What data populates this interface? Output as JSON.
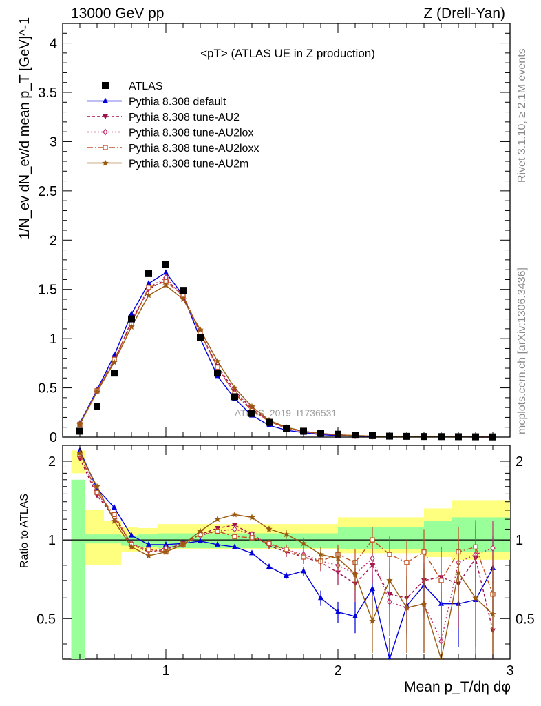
{
  "header": {
    "left": "13000 GeV pp",
    "right": "Z (Drell-Yan)"
  },
  "side_text": {
    "rivet": "Rivet 3.1.10, ≥ 2.1M events",
    "mcplots": "mcplots.cern.ch [arXiv:1306.3436]"
  },
  "watermark": "ATLAS_2019_I1736531",
  "chart_data": [
    {
      "type": "line",
      "title": "<pT> (ATLAS UE in Z production)",
      "ylabel": "1/N_ev dN_ev/d mean p_T [GeV]^-1",
      "xlim": [
        0.4,
        3.0
      ],
      "ylim": [
        0,
        4.2
      ],
      "yticks": [
        "0",
        "0.5",
        "1",
        "1.5",
        "2",
        "2.5",
        "3",
        "3.5",
        "4"
      ],
      "x": [
        0.5,
        0.6,
        0.7,
        0.8,
        0.9,
        1.0,
        1.1,
        1.2,
        1.3,
        1.4,
        1.5,
        1.6,
        1.7,
        1.8,
        1.9,
        2.0,
        2.1,
        2.2,
        2.3,
        2.4,
        2.5,
        2.6,
        2.7,
        2.8,
        2.9
      ],
      "series": [
        {
          "name": "ATLAS",
          "color": "#000000",
          "marker": "square",
          "values": [
            0.06,
            0.31,
            0.65,
            1.2,
            1.66,
            1.75,
            1.49,
            1.01,
            0.65,
            0.41,
            0.24,
            0.15,
            0.09,
            0.06,
            0.04,
            0.03,
            0.02,
            0.015,
            0.01,
            0.008,
            0.006,
            0.005,
            0.004,
            0.003,
            0.002
          ]
        },
        {
          "name": "Pythia 8.308 default",
          "color": "#0000dd",
          "marker": "triangle-up",
          "values": [
            0.14,
            0.48,
            0.83,
            1.25,
            1.56,
            1.67,
            1.44,
            1.0,
            0.62,
            0.39,
            0.22,
            0.12,
            0.07,
            0.045,
            0.025,
            0.015,
            0.01,
            0.008,
            0.005,
            0.004,
            0.003,
            0.002,
            0.002,
            0.001,
            0.001
          ]
        },
        {
          "name": "Pythia 8.308 tune-AU2",
          "color": "#a0104a",
          "marker": "triangle-down",
          "values": [
            0.125,
            0.46,
            0.77,
            1.18,
            1.5,
            1.6,
            1.44,
            1.06,
            0.72,
            0.47,
            0.29,
            0.16,
            0.09,
            0.055,
            0.035,
            0.02,
            0.012,
            0.008,
            0.006,
            0.004,
            0.003,
            0.002,
            0.002,
            0.001,
            0.001
          ]
        },
        {
          "name": "Pythia 8.308 tune-AU2lox",
          "color": "#c0306a",
          "marker": "diamond-open",
          "values": [
            0.13,
            0.47,
            0.78,
            1.17,
            1.52,
            1.62,
            1.42,
            1.05,
            0.7,
            0.45,
            0.28,
            0.16,
            0.09,
            0.055,
            0.035,
            0.022,
            0.014,
            0.009,
            0.006,
            0.004,
            0.003,
            0.002,
            0.002,
            0.001,
            0.001
          ]
        },
        {
          "name": "Pythia 8.308 tune-AU2loxx",
          "color": "#c05020",
          "marker": "square-open",
          "values": [
            0.13,
            0.47,
            0.79,
            1.15,
            1.52,
            1.58,
            1.44,
            1.06,
            0.71,
            0.44,
            0.27,
            0.16,
            0.09,
            0.06,
            0.035,
            0.025,
            0.016,
            0.011,
            0.007,
            0.005,
            0.004,
            0.003,
            0.002,
            0.002,
            0.001
          ]
        },
        {
          "name": "Pythia 8.308 tune-AU2m",
          "color": "#9a5a10",
          "marker": "star",
          "values": [
            0.13,
            0.46,
            0.76,
            1.12,
            1.44,
            1.54,
            1.4,
            1.09,
            0.77,
            0.5,
            0.31,
            0.17,
            0.1,
            0.06,
            0.037,
            0.024,
            0.015,
            0.01,
            0.007,
            0.005,
            0.004,
            0.003,
            0.002,
            0.001,
            0.001
          ]
        }
      ]
    },
    {
      "type": "line",
      "ylabel": "Ratio to ATLAS",
      "xlabel": "Mean p_T/dη dφ",
      "xlim": [
        0.4,
        3.0
      ],
      "ylim": [
        0.35,
        2.3
      ],
      "log_y": true,
      "yticks": [
        "0.5",
        "1",
        "2"
      ],
      "xticks": [
        "1",
        "2",
        "3"
      ],
      "x": [
        0.5,
        0.6,
        0.7,
        0.8,
        0.9,
        1.0,
        1.1,
        1.2,
        1.3,
        1.4,
        1.5,
        1.6,
        1.7,
        1.8,
        1.9,
        2.0,
        2.1,
        2.2,
        2.3,
        2.4,
        2.5,
        2.6,
        2.7,
        2.8,
        2.9
      ],
      "bands": {
        "yellow": [
          [
            0.53,
            1.8,
            2.2
          ],
          [
            0.64,
            0.8,
            1.3
          ],
          [
            0.74,
            0.8,
            1.18
          ],
          [
            0.84,
            0.9,
            1.12
          ],
          [
            0.95,
            0.91,
            1.11
          ],
          [
            2.0,
            0.92,
            1.15
          ],
          [
            2.5,
            0.89,
            1.22
          ],
          [
            2.66,
            0.86,
            1.32
          ],
          [
            3.0,
            0.84,
            1.42
          ]
        ],
        "green": [
          [
            0.53,
            1.7,
            1.7
          ],
          [
            0.64,
            0.97,
            1.05
          ],
          [
            0.74,
            0.97,
            1.05
          ],
          [
            0.84,
            0.95,
            1.04
          ],
          [
            0.95,
            0.94,
            1.05
          ],
          [
            2.0,
            0.93,
            1.06
          ],
          [
            2.5,
            0.92,
            1.12
          ],
          [
            2.66,
            0.9,
            1.18
          ],
          [
            3.0,
            0.9,
            1.22
          ]
        ]
      },
      "series": [
        {
          "name": "Pythia 8.308 default",
          "color": "#0000dd",
          "marker": "triangle-up",
          "values": [
            2.2,
            1.57,
            1.33,
            1.04,
            0.96,
            0.96,
            0.97,
            0.99,
            0.96,
            0.94,
            0.89,
            0.79,
            0.73,
            0.76,
            0.6,
            0.53,
            0.51,
            0.65,
            0.3,
            0.56,
            0.67,
            0.57,
            0.57,
            0.59,
            0.78
          ],
          "err": [
            0.05,
            0.03,
            0.02,
            0.01,
            0.01,
            0.01,
            0.01,
            0.01,
            0.01,
            0.01,
            0.01,
            0.02,
            0.02,
            0.03,
            0.04,
            0.05,
            0.07,
            0.1,
            0.12,
            0.12,
            0.15,
            0.15,
            0.18,
            0.2,
            0.25
          ]
        },
        {
          "name": "Pythia 8.308 tune-AU2",
          "color": "#a0104a",
          "marker": "triangle-down",
          "values": [
            2.05,
            1.48,
            1.22,
            0.96,
            0.9,
            0.92,
            0.97,
            1.05,
            1.11,
            1.14,
            1.05,
            0.95,
            0.9,
            0.86,
            0.82,
            0.75,
            0.68,
            0.8,
            0.62,
            0.6,
            0.7,
            0.72,
            0.68,
            0.85,
            0.45
          ],
          "err": [
            0.05,
            0.03,
            0.02,
            0.01,
            0.01,
            0.01,
            0.01,
            0.01,
            0.01,
            0.01,
            0.02,
            0.03,
            0.04,
            0.05,
            0.06,
            0.08,
            0.1,
            0.12,
            0.15,
            0.18,
            0.2,
            0.22,
            0.22,
            0.25,
            0.25
          ]
        },
        {
          "name": "Pythia 8.308 tune-AU2lox",
          "color": "#c0306a",
          "marker": "diamond-open",
          "values": [
            2.1,
            1.52,
            1.22,
            0.97,
            0.91,
            0.93,
            0.96,
            1.04,
            1.08,
            1.1,
            1.05,
            0.96,
            0.92,
            0.88,
            0.83,
            0.8,
            0.74,
            0.85,
            0.58,
            0.55,
            0.57,
            0.41,
            0.82,
            0.88,
            0.93
          ],
          "err": [
            0.05,
            0.03,
            0.02,
            0.01,
            0.01,
            0.01,
            0.01,
            0.01,
            0.01,
            0.01,
            0.02,
            0.03,
            0.04,
            0.05,
            0.06,
            0.08,
            0.1,
            0.12,
            0.15,
            0.18,
            0.2,
            0.22,
            0.22,
            0.25,
            0.25
          ]
        },
        {
          "name": "Pythia 8.308 tune-AU2loxx",
          "color": "#c05020",
          "marker": "square-open",
          "values": [
            2.12,
            1.52,
            1.25,
            0.96,
            0.92,
            0.9,
            0.96,
            1.05,
            1.08,
            1.03,
            1.02,
            0.97,
            0.92,
            0.86,
            0.83,
            0.88,
            0.82,
            1.0,
            0.88,
            0.82,
            0.9,
            0.7,
            0.9,
            0.94,
            0.62
          ],
          "err": [
            0.05,
            0.03,
            0.02,
            0.01,
            0.01,
            0.01,
            0.01,
            0.01,
            0.01,
            0.01,
            0.02,
            0.03,
            0.04,
            0.05,
            0.06,
            0.08,
            0.1,
            0.12,
            0.15,
            0.18,
            0.2,
            0.22,
            0.22,
            0.25,
            0.25
          ]
        },
        {
          "name": "Pythia 8.308 tune-AU2m",
          "color": "#9a5a10",
          "marker": "star",
          "values": [
            2.15,
            1.6,
            1.18,
            0.94,
            0.87,
            0.9,
            0.96,
            1.08,
            1.2,
            1.25,
            1.22,
            1.1,
            1.05,
            0.97,
            0.88,
            0.85,
            0.74,
            0.49,
            0.7,
            0.55,
            0.57,
            0.35,
            0.75,
            0.6,
            0.52
          ],
          "err": [
            0.05,
            0.03,
            0.02,
            0.01,
            0.01,
            0.01,
            0.01,
            0.01,
            0.01,
            0.01,
            0.02,
            0.03,
            0.04,
            0.05,
            0.06,
            0.08,
            0.1,
            0.12,
            0.15,
            0.18,
            0.2,
            0.22,
            0.22,
            0.25,
            0.25
          ]
        }
      ]
    }
  ]
}
